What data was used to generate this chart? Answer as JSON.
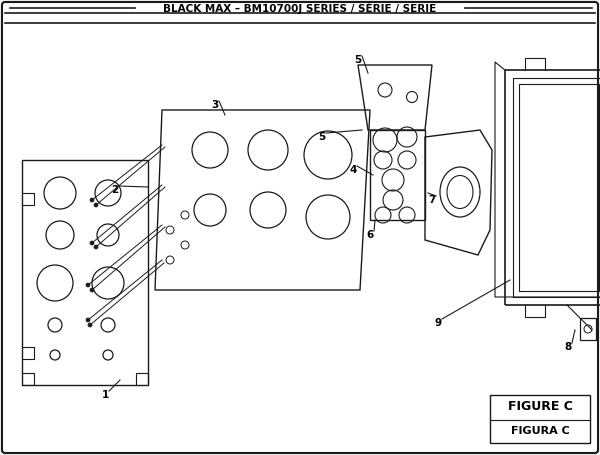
{
  "title": "BLACK MAX – BM10700J SERIES / SÉRIE / SERIE",
  "figure_label": "FIGURE C",
  "figura_label": "FIGURA C",
  "bg_color": "#f0f0f0",
  "inner_bg": "#ffffff",
  "line_color": "#1a1a1a",
  "text_color": "#000000",
  "title_fontsize": 7.5,
  "label_fontsize": 7.5,
  "figure_label_fontsize": 9
}
